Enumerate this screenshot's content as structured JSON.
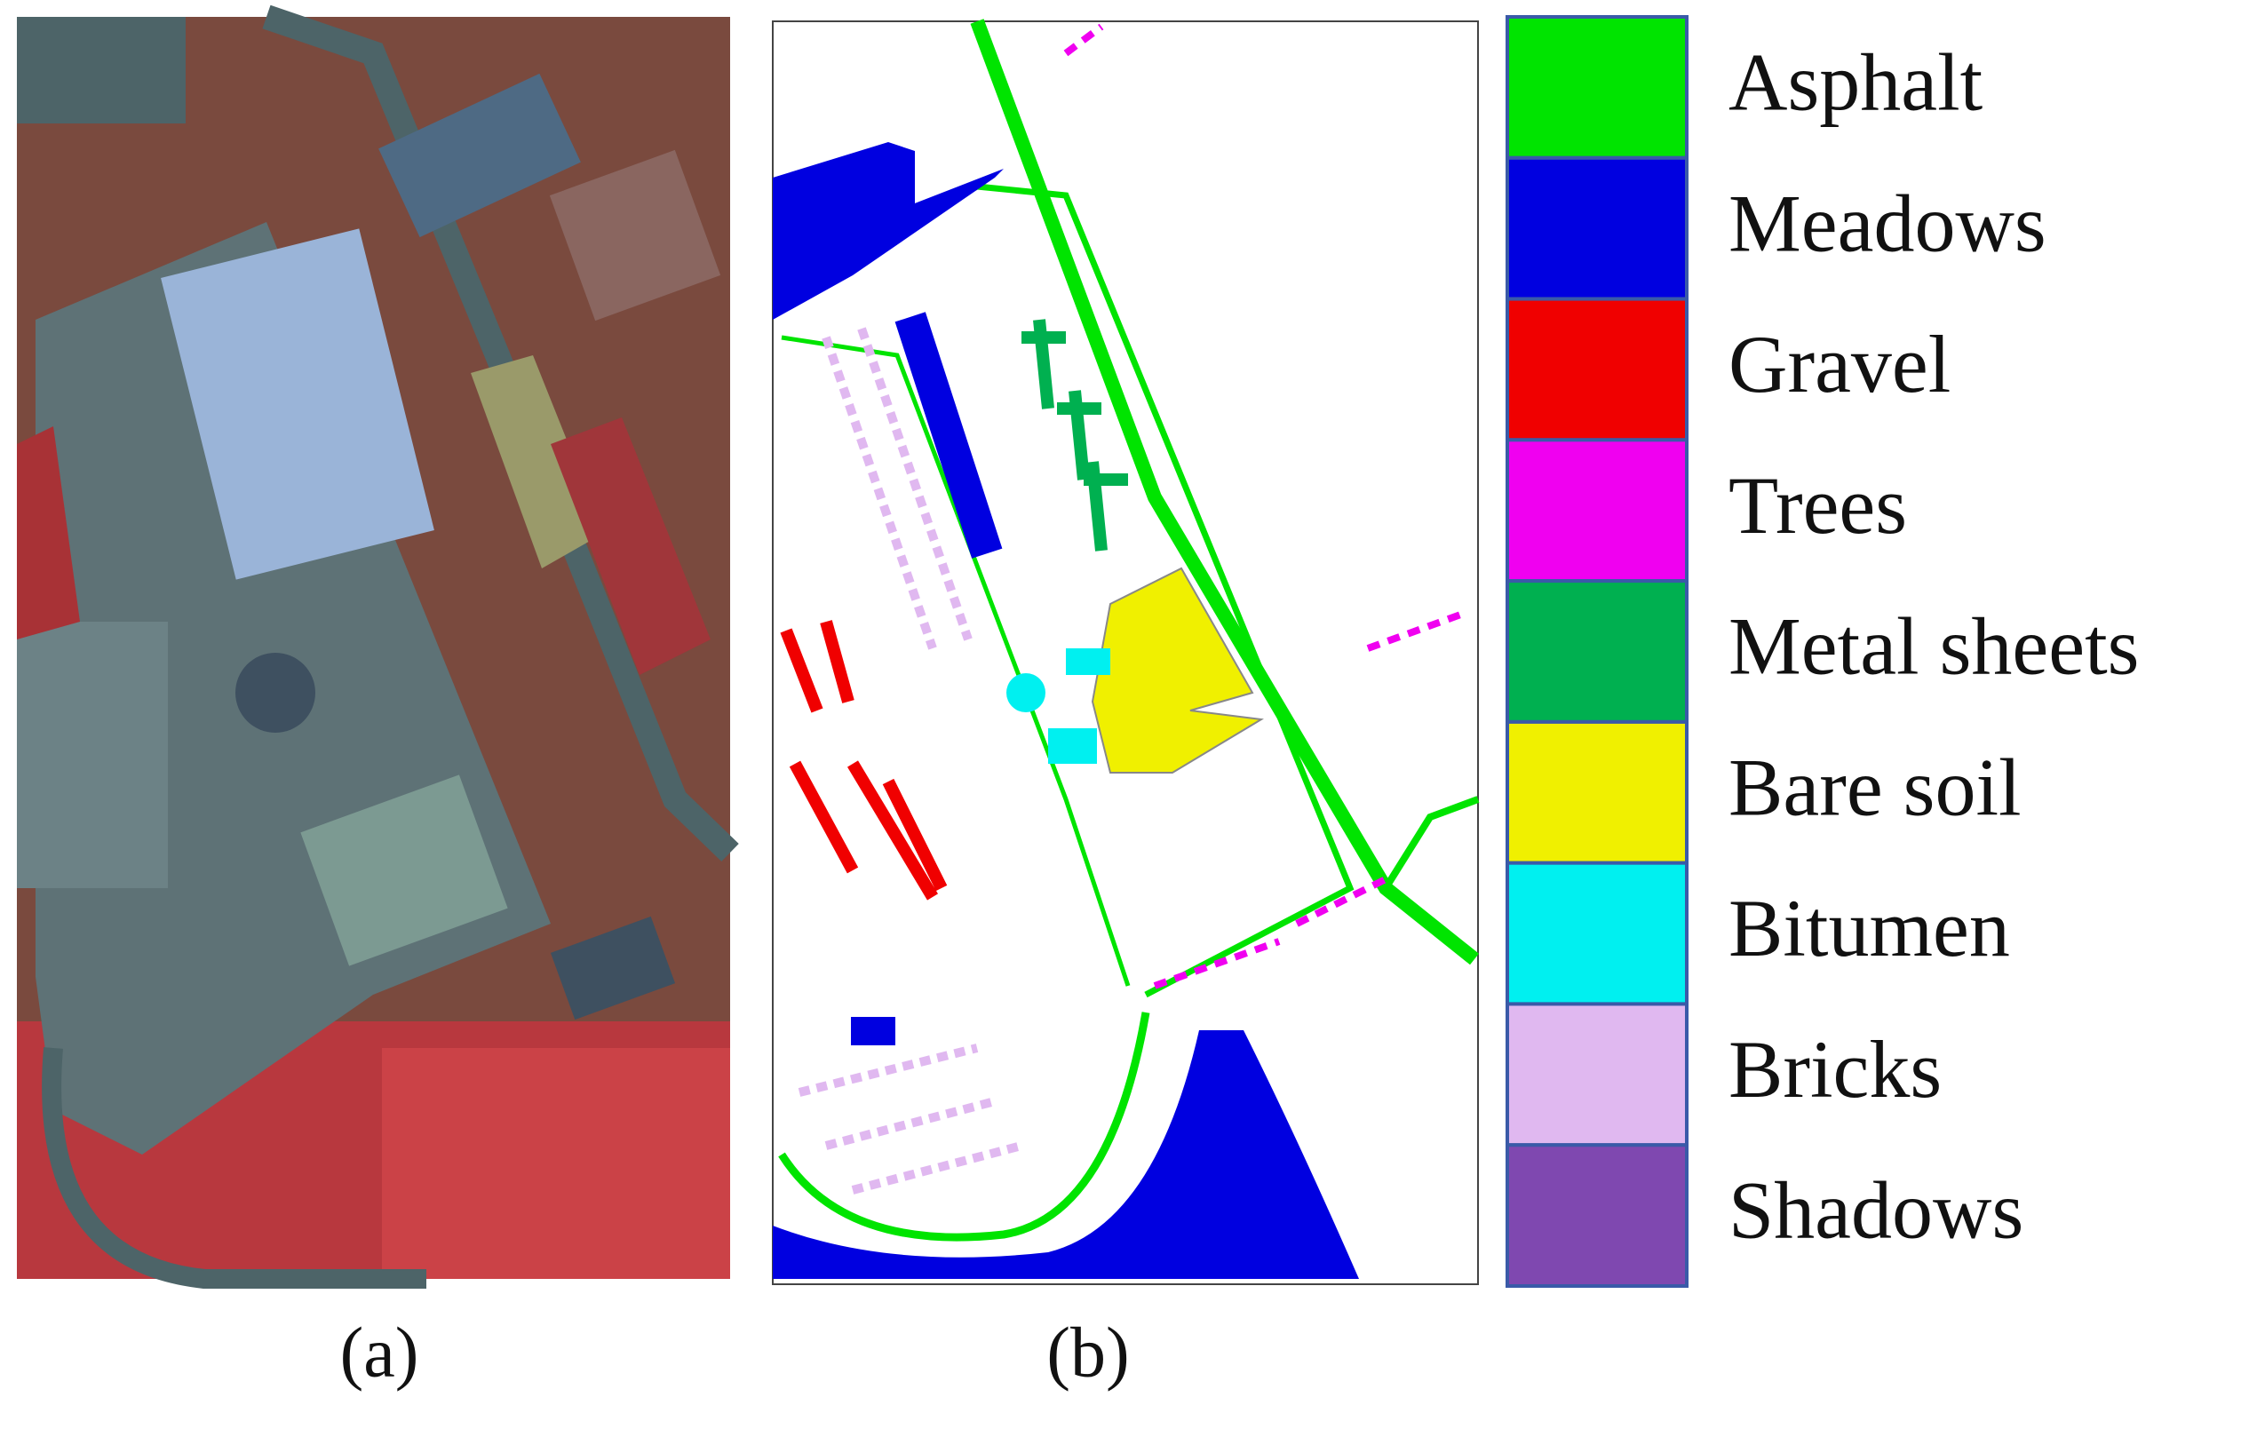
{
  "panels": [
    {
      "caption": "(a)"
    },
    {
      "caption": "(b)"
    }
  ],
  "legend": {
    "items": [
      {
        "label": "Asphalt",
        "color": "#00e400"
      },
      {
        "label": "Meadows",
        "color": "#0000e0"
      },
      {
        "label": "Gravel",
        "color": "#f00000"
      },
      {
        "label": "Trees",
        "color": "#f000f0"
      },
      {
        "label": "Metal sheets",
        "color": "#00b050"
      },
      {
        "label": "Bare soil",
        "color": "#f0f000"
      },
      {
        "label": "Bitumen",
        "color": "#00f0f0"
      },
      {
        "label": "Bricks",
        "color": "#e0b8f0"
      },
      {
        "label": "Shadows",
        "color": "#7f48b0"
      }
    ]
  }
}
